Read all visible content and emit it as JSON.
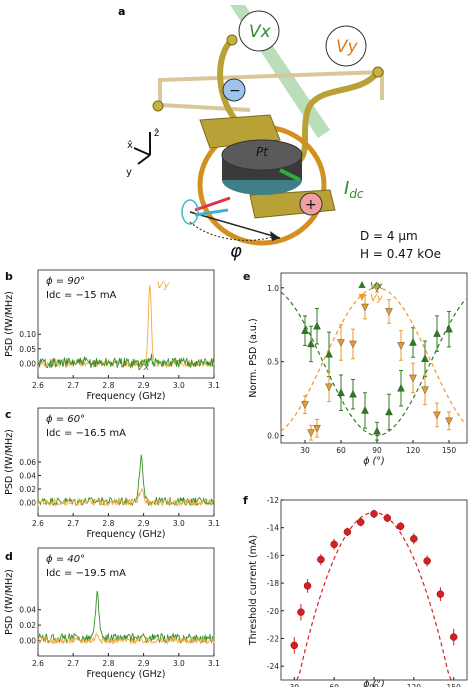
{
  "schematic": {
    "panel_letter": "a",
    "vx_label": "Vx",
    "vy_label": "Vy",
    "minus_sign": "−",
    "plus_sign": "+",
    "pt_label": "Pt",
    "idc_label": "I",
    "idc_sub": "dc",
    "phi_label": "φ",
    "axis_z": "ẑ",
    "axis_x": "x̂",
    "axis_y": "y",
    "param_d": "D = 4 μm",
    "param_h": "H = 0.47 kOe",
    "colors": {
      "vx": "#2e8b2e",
      "vy": "#e07a1a",
      "gold": "#b8a238",
      "disk": "#5a5a5a"
    }
  },
  "chart_data": [
    {
      "id": "b",
      "type": "line",
      "panel_letter": "b",
      "xlabel": "Frequency (GHz)",
      "ylabel": "PSD (fW/MHz)",
      "xlim": [
        2.6,
        3.1
      ],
      "ylim": [
        -0.05,
        0.32
      ],
      "xticks": [
        "2.6",
        "2.7",
        "2.8",
        "2.9",
        "3.0",
        "3.1"
      ],
      "yticks": [
        "0.00",
        "0.05",
        "0.10"
      ],
      "annotation_phi": "ϕ = 90°",
      "annotation_idc": "Idc = −15 mA",
      "series": [
        {
          "name": "Vy",
          "color": "#f2a93b",
          "peak_x": 2.918,
          "peak_y": 0.27,
          "peak_width": 0.006,
          "base_y": 0.0,
          "noise": 0.012
        },
        {
          "name": "Vx",
          "color": "#3a8f2a",
          "peak_x": 2.918,
          "peak_y": 0.025,
          "peak_width": 0.006,
          "base_y": 0.003,
          "noise": 0.018
        }
      ]
    },
    {
      "id": "c",
      "type": "line",
      "panel_letter": "c",
      "xlabel": "Frequency (GHz)",
      "ylabel": "PSD (fW/MHz)",
      "xlim": [
        2.6,
        3.1
      ],
      "ylim": [
        -0.02,
        0.14
      ],
      "xticks": [
        "2.6",
        "2.7",
        "2.8",
        "2.9",
        "3.0",
        "3.1"
      ],
      "yticks": [
        "0.00",
        "0.02",
        "0.04",
        "0.06"
      ],
      "annotation_phi": "ϕ = 60°",
      "annotation_idc": "Idc = −16.5 mA",
      "series": [
        {
          "name": "Vx",
          "color": "#3a8f2a",
          "peak_x": 2.893,
          "peak_y": 0.065,
          "peak_width": 0.007,
          "base_y": 0.002,
          "noise": 0.006
        },
        {
          "name": "Vy",
          "color": "#f2a93b",
          "peak_x": 2.893,
          "peak_y": 0.02,
          "peak_width": 0.008,
          "base_y": 0.0,
          "noise": 0.005
        }
      ]
    },
    {
      "id": "d",
      "type": "line",
      "panel_letter": "d",
      "xlabel": "Frequency (GHz)",
      "ylabel": "PSD (fW/MHz)",
      "xlim": [
        2.6,
        3.1
      ],
      "ylim": [
        -0.02,
        0.12
      ],
      "xticks": [
        "2.6",
        "2.7",
        "2.8",
        "2.9",
        "3.0",
        "3.1"
      ],
      "yticks": [
        "0.00",
        "0.02",
        "0.04"
      ],
      "annotation_phi": "ϕ = 40°",
      "annotation_idc": "Idc = −19.5 mA",
      "series": [
        {
          "name": "Vx",
          "color": "#3a8f2a",
          "peak_x": 2.768,
          "peak_y": 0.057,
          "peak_width": 0.007,
          "base_y": 0.003,
          "noise": 0.006
        },
        {
          "name": "Vy",
          "color": "#f2a93b",
          "peak_x": 2.768,
          "peak_y": 0.008,
          "peak_width": 0.008,
          "base_y": 0.0,
          "noise": 0.004
        }
      ]
    },
    {
      "id": "e",
      "type": "scatter",
      "panel_letter": "e",
      "xlabel": "ϕ (°)",
      "ylabel": "Norm. PSD (a.u.)",
      "xlim": [
        10,
        165
      ],
      "ylim": [
        -0.05,
        1.1
      ],
      "xticks": [
        30,
        60,
        90,
        120,
        150
      ],
      "yticks": [
        0.0,
        0.5,
        1.0
      ],
      "ytick_labels": [
        "0.0",
        "0.5",
        "1.0"
      ],
      "legend_position": "top-center",
      "series": [
        {
          "name": "Vx",
          "marker": "triangle-up",
          "color": "#2e7d1e",
          "fit": "cos2",
          "fit_amplitude": 1.0,
          "fit_center": 90,
          "x": [
            30,
            35,
            40,
            50,
            60,
            70,
            80,
            90,
            100,
            110,
            120,
            130,
            140,
            150
          ],
          "y": [
            0.71,
            0.62,
            0.74,
            0.55,
            0.29,
            0.28,
            0.17,
            0.03,
            0.16,
            0.32,
            0.63,
            0.52,
            0.69,
            0.72
          ],
          "err": [
            0.1,
            0.12,
            0.12,
            0.15,
            0.12,
            0.1,
            0.12,
            0.06,
            0.12,
            0.12,
            0.1,
            0.12,
            0.12,
            0.12
          ]
        },
        {
          "name": "Vy",
          "marker": "triangle-down",
          "color": "#e89a2c",
          "fit": "sin2",
          "fit_amplitude": 1.0,
          "fit_center": 90,
          "x": [
            30,
            35,
            40,
            50,
            60,
            70,
            80,
            90,
            100,
            110,
            120,
            130,
            140,
            150
          ],
          "y": [
            0.21,
            0.02,
            0.05,
            0.33,
            0.63,
            0.62,
            0.87,
            1.0,
            0.84,
            0.61,
            0.39,
            0.31,
            0.14,
            0.1
          ],
          "err": [
            0.06,
            0.05,
            0.06,
            0.1,
            0.12,
            0.1,
            0.08,
            0.03,
            0.08,
            0.1,
            0.1,
            0.1,
            0.08,
            0.06
          ]
        }
      ]
    },
    {
      "id": "f",
      "type": "scatter",
      "panel_letter": "f",
      "xlabel": "ϕ (°)",
      "ylabel": "Threshold current (mA)",
      "xlim": [
        20,
        160
      ],
      "ylim": [
        -25,
        -12
      ],
      "xticks": [
        30,
        60,
        90,
        120,
        150
      ],
      "yticks": [
        -24,
        -22,
        -20,
        -18,
        -16,
        -14,
        -12
      ],
      "series": [
        {
          "name": "threshold",
          "marker": "circle",
          "color": "#d62020",
          "fit": "parabola",
          "fit_peak_x": 90,
          "fit_peak_y": -12.9,
          "fit_curvature": 0.0037,
          "x": [
            30,
            35,
            40,
            50,
            60,
            70,
            80,
            90,
            100,
            110,
            120,
            130,
            140,
            150
          ],
          "y": [
            -22.5,
            -20.1,
            -18.2,
            -16.3,
            -15.2,
            -14.3,
            -13.6,
            -13.0,
            -13.3,
            -13.9,
            -14.8,
            -16.4,
            -18.8,
            -21.9
          ],
          "err": [
            0.6,
            0.6,
            0.5,
            0.4,
            0.4,
            0.3,
            0.3,
            0.3,
            0.3,
            0.3,
            0.4,
            0.4,
            0.5,
            0.6
          ]
        }
      ]
    }
  ]
}
